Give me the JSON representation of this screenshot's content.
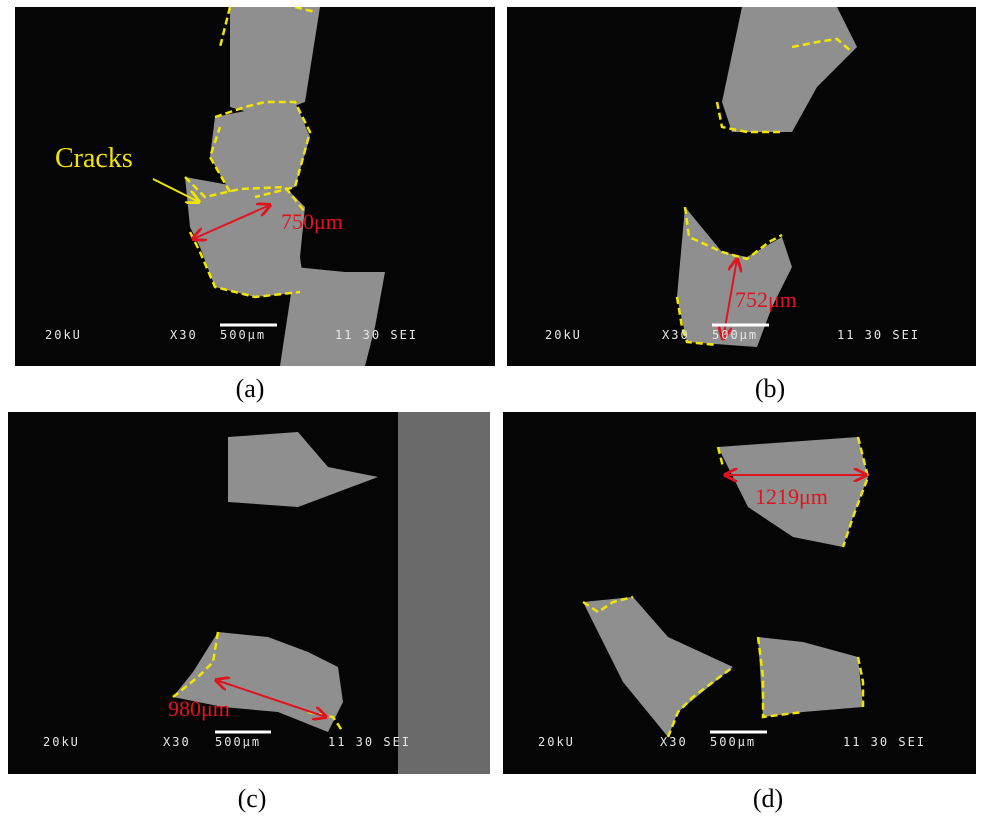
{
  "panels": [
    {
      "label": "(a)",
      "annotation": "Cracks",
      "measurement": "750μm",
      "info": {
        "voltage": "20kU",
        "magnification": "X30",
        "scale": "500μm",
        "code": "11 30 SEI"
      }
    },
    {
      "label": "(b)",
      "measurement": "752μm",
      "info": {
        "voltage": "20kU",
        "magnification": "X30",
        "scale": "500μm",
        "code": "11 30 SEI"
      }
    },
    {
      "label": "(c)",
      "measurement": "980μm",
      "info": {
        "voltage": "20kU",
        "magnification": "X30",
        "scale": "500μm",
        "code": "11 30 SEI"
      }
    },
    {
      "label": "(d)",
      "measurement": "1219μm",
      "info": {
        "voltage": "20kU",
        "magnification": "X30",
        "scale": "500μm",
        "code": "11 30 SEI"
      }
    }
  ]
}
